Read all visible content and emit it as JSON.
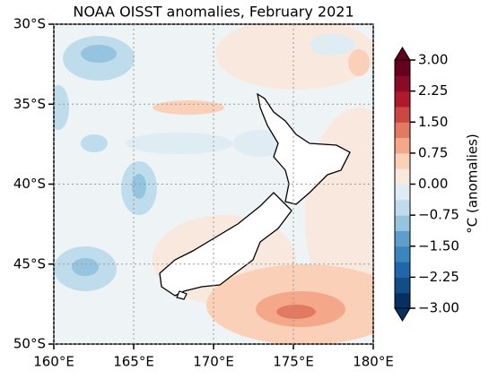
{
  "chart_data": {
    "type": "contour-map",
    "title": "NOAA OISST anomalies, February 2021",
    "xlim": [
      160,
      180
    ],
    "xticks": [
      {
        "value": 160,
        "label": "160°E"
      },
      {
        "value": 165,
        "label": "165°E"
      },
      {
        "value": 170,
        "label": "170°E"
      },
      {
        "value": 175,
        "label": "175°E"
      },
      {
        "value": 180,
        "label": "180°E"
      }
    ],
    "ylim": [
      -30,
      -50
    ],
    "yticks": [
      {
        "value": -30,
        "label": "30°S"
      },
      {
        "value": -35,
        "label": "35°S"
      },
      {
        "value": -40,
        "label": "40°S"
      },
      {
        "value": -45,
        "label": "45°S"
      },
      {
        "value": -50,
        "label": "50°S"
      }
    ],
    "grid": true,
    "colorbar": {
      "label": "°C (anomalies)",
      "lim": [
        -3,
        3
      ],
      "ticks": [
        {
          "value": 3,
          "label": "3.00"
        },
        {
          "value": 2.25,
          "label": "2.25"
        },
        {
          "value": 1.5,
          "label": "1.50"
        },
        {
          "value": 0.75,
          "label": "0.75"
        },
        {
          "value": 0,
          "label": "0.00"
        },
        {
          "value": -0.75,
          "label": "−0.75"
        },
        {
          "value": -1.5,
          "label": "−1.50"
        },
        {
          "value": -2.25,
          "label": "−2.25"
        },
        {
          "value": -3,
          "label": "−3.00"
        }
      ],
      "colors": [
        "#053061",
        "#134c87",
        "#2166ac",
        "#3a87bd",
        "#5e9fca",
        "#94c4df",
        "#bfdcec",
        "#e0ecf3",
        "#f9e8dd",
        "#fbd0b9",
        "#f5a889",
        "#e27a62",
        "#ca4841",
        "#b2182b",
        "#8a0b25",
        "#67001f"
      ]
    }
  }
}
